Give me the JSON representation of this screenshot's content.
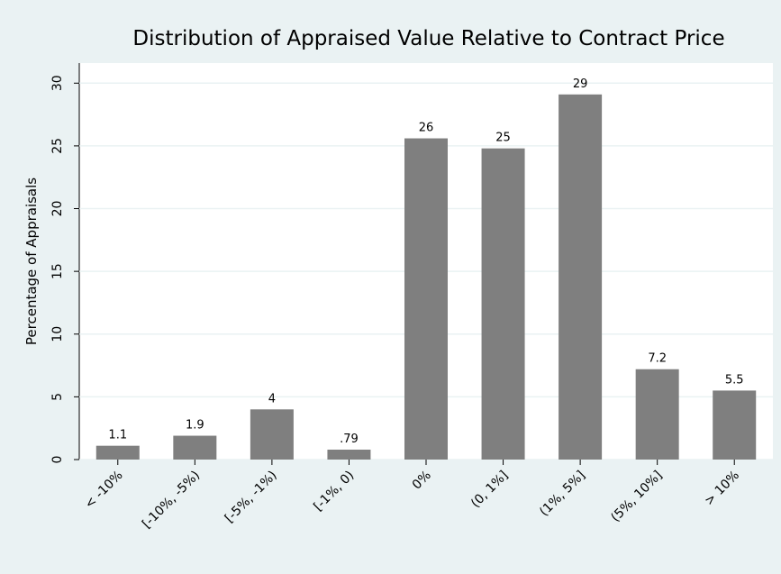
{
  "chart_data": {
    "type": "bar",
    "title": "Distribution of Appraised Value Relative to Contract Price",
    "y_label": "Percentage of Appraisals",
    "categories": [
      "< -10%",
      "[-10%, -5%)",
      "[-5%, -1%)",
      "[-1%, 0)",
      "0%",
      "(0, 1%]",
      "(1%, 5%]",
      "(5%, 10%]",
      "> 10%"
    ],
    "values": [
      1.1,
      1.9,
      4,
      0.79,
      25.6,
      24.8,
      29.1,
      7.2,
      5.5
    ],
    "value_labels": [
      "1.1",
      "1.9",
      "4",
      ".79",
      "26",
      "25",
      "29",
      "7.2",
      "5.5"
    ],
    "color": "#7f7f7f",
    "ylim": [
      0,
      31.6
    ],
    "yticks": [
      0,
      5,
      10,
      15,
      20,
      25,
      30
    ],
    "grid": true
  }
}
